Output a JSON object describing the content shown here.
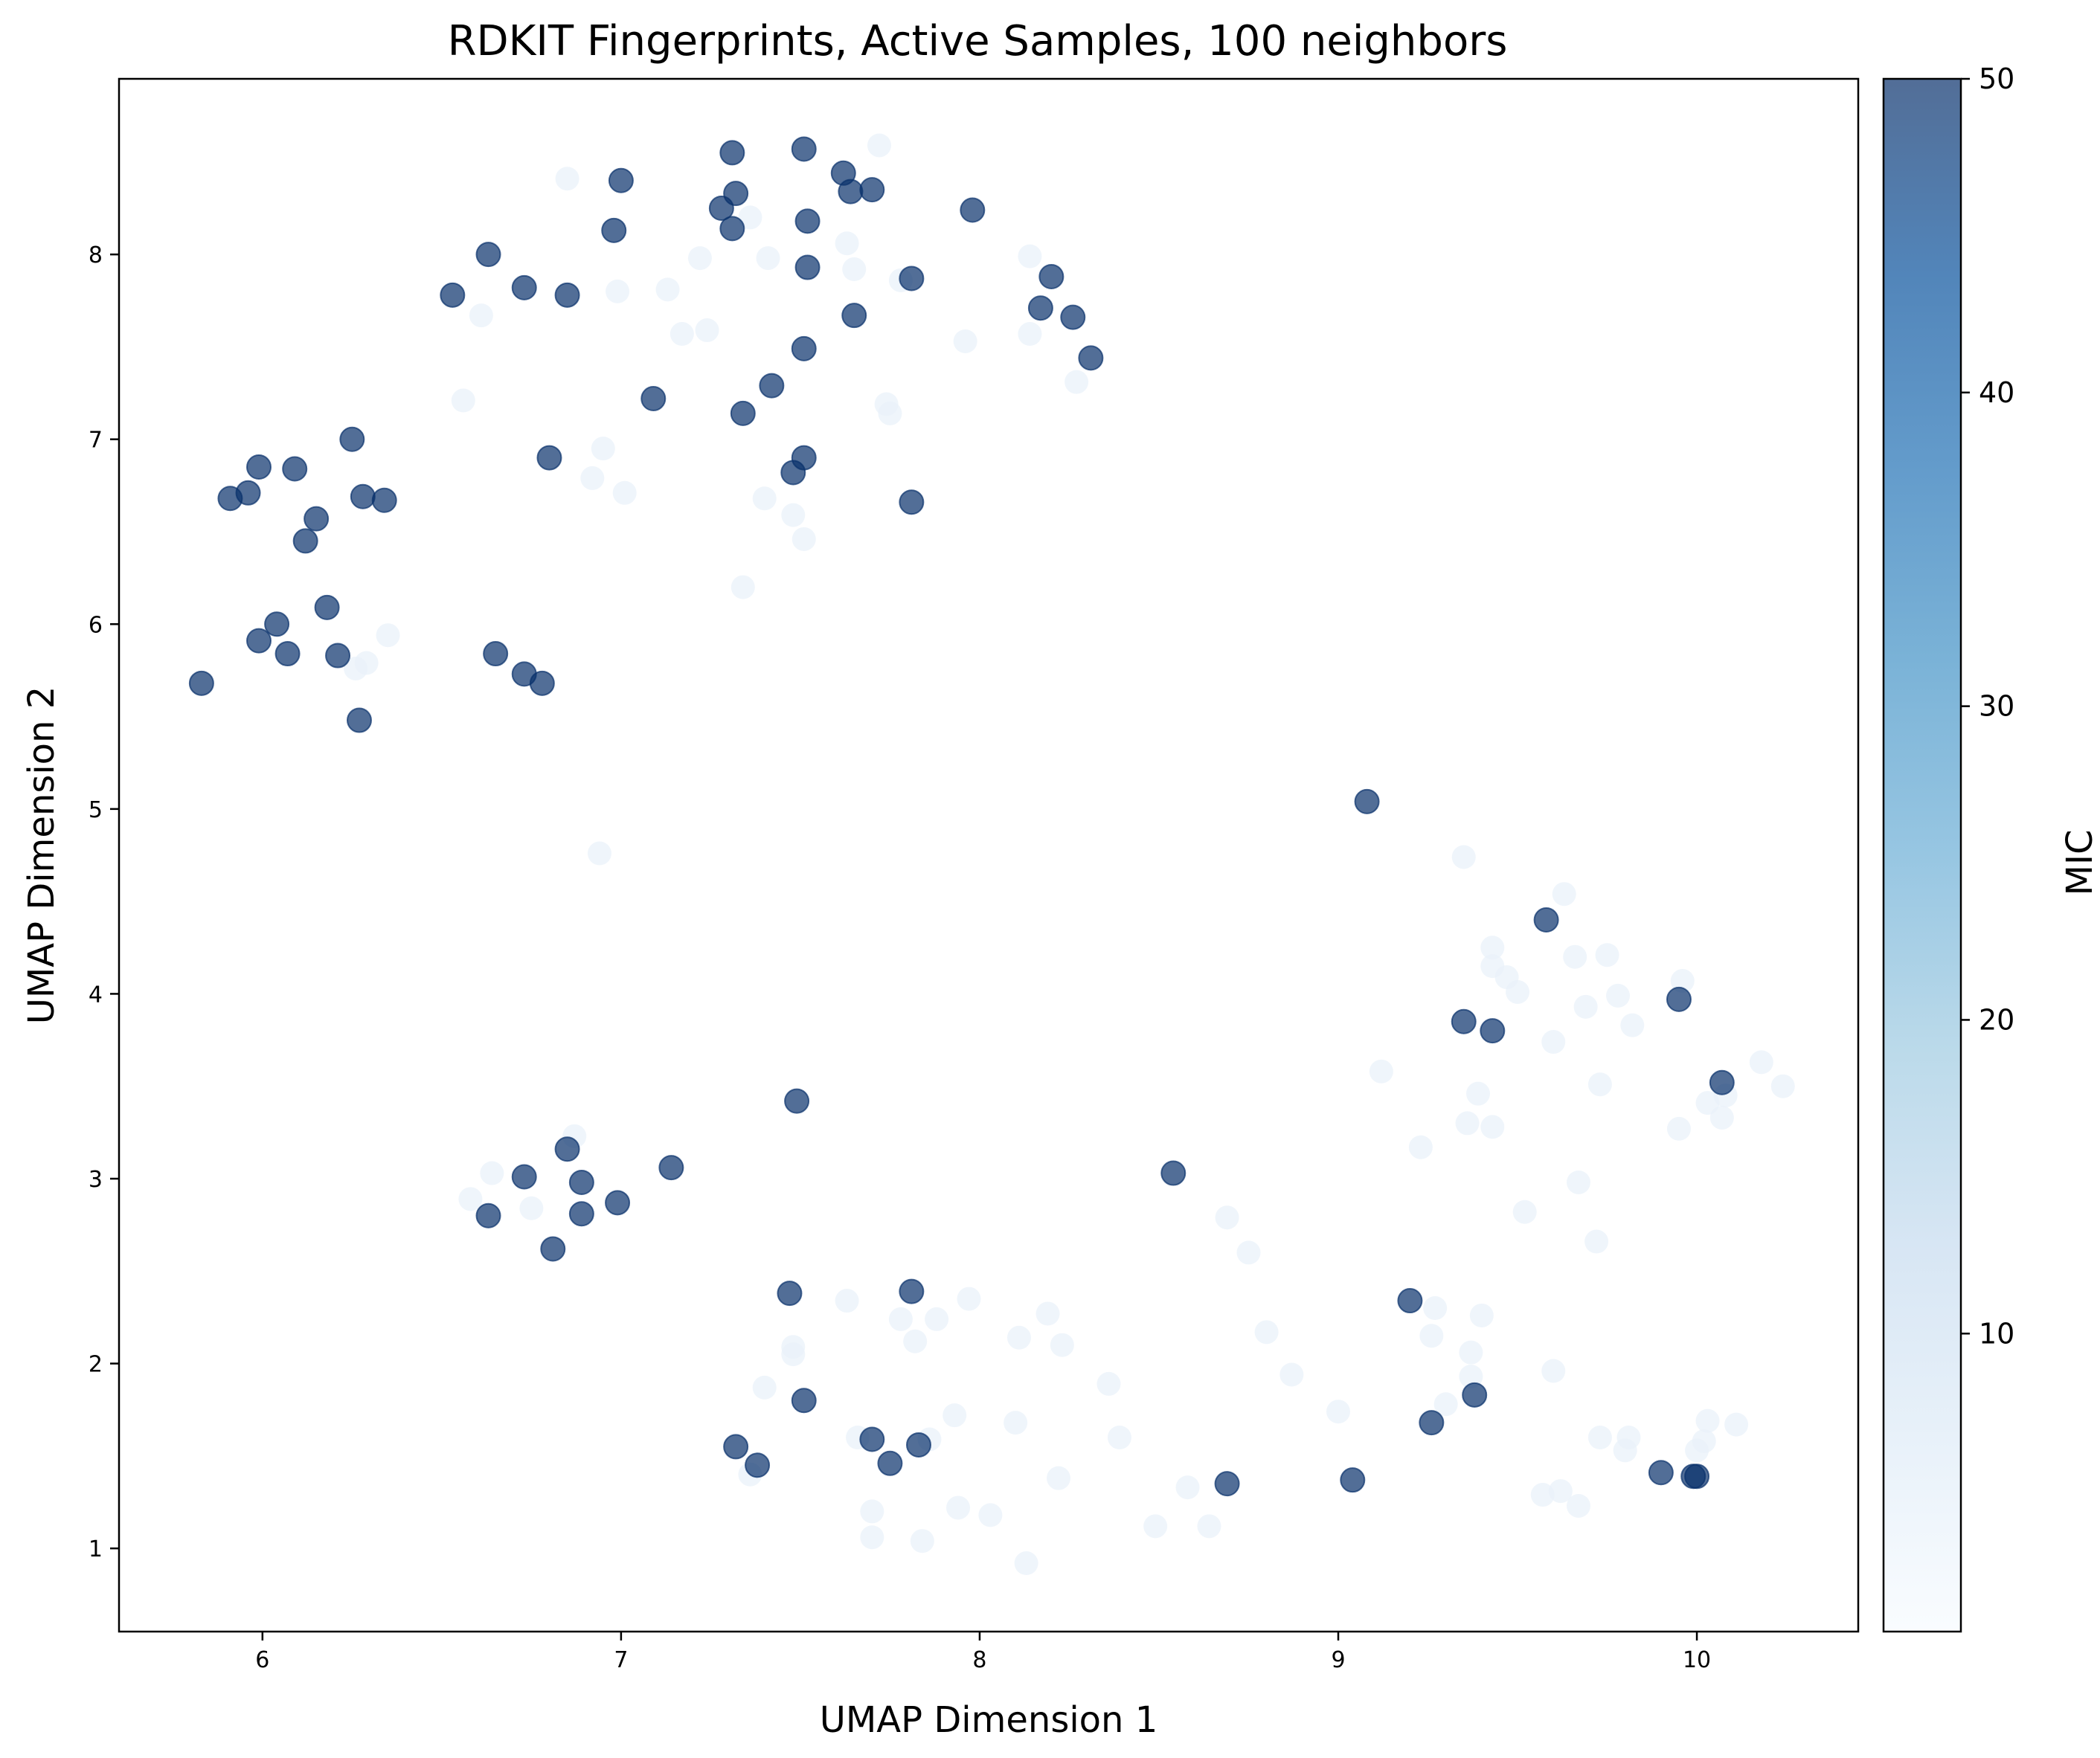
{
  "chart_data": {
    "type": "scatter",
    "title": "RDKIT Fingerprints, Active Samples, 100 neighbors",
    "xlabel": "UMAP Dimension 1",
    "ylabel": "UMAP Dimension 2",
    "xlim": [
      5.6,
      10.45
    ],
    "ylim": [
      0.55,
      8.95
    ],
    "xticks": [
      6,
      7,
      8,
      9,
      10
    ],
    "yticks": [
      1,
      2,
      3,
      4,
      5,
      6,
      7,
      8
    ],
    "grid": false,
    "colormap": "Blues",
    "colormap_stops": [
      "#f7fbff",
      "#deebf7",
      "#c6dbef",
      "#9ecae1",
      "#6baed6",
      "#4292c6",
      "#2171b5",
      "#08519c",
      "#08306b"
    ],
    "point_alpha": 0.7,
    "colorbar": {
      "label": "MIC",
      "range": [
        0.5,
        50
      ],
      "ticks": [
        10,
        20,
        30,
        40,
        50
      ]
    },
    "points_high_mic": [
      {
        "x": 5.83,
        "y": 5.68
      },
      {
        "x": 5.91,
        "y": 6.68
      },
      {
        "x": 5.96,
        "y": 6.71
      },
      {
        "x": 5.99,
        "y": 6.85
      },
      {
        "x": 5.99,
        "y": 5.91
      },
      {
        "x": 6.04,
        "y": 6.0
      },
      {
        "x": 6.07,
        "y": 5.84
      },
      {
        "x": 6.09,
        "y": 6.84
      },
      {
        "x": 6.12,
        "y": 6.45
      },
      {
        "x": 6.15,
        "y": 6.57
      },
      {
        "x": 6.18,
        "y": 6.09
      },
      {
        "x": 6.21,
        "y": 5.83
      },
      {
        "x": 6.25,
        "y": 7.0
      },
      {
        "x": 6.27,
        "y": 5.48
      },
      {
        "x": 6.28,
        "y": 6.69
      },
      {
        "x": 6.34,
        "y": 6.67
      },
      {
        "x": 6.53,
        "y": 7.78
      },
      {
        "x": 6.63,
        "y": 8.0
      },
      {
        "x": 6.65,
        "y": 5.84
      },
      {
        "x": 6.73,
        "y": 7.82
      },
      {
        "x": 6.73,
        "y": 5.73
      },
      {
        "x": 6.78,
        "y": 5.68
      },
      {
        "x": 6.8,
        "y": 6.9
      },
      {
        "x": 6.85,
        "y": 7.78
      },
      {
        "x": 6.98,
        "y": 8.13
      },
      {
        "x": 7.0,
        "y": 8.4
      },
      {
        "x": 7.09,
        "y": 7.22
      },
      {
        "x": 7.28,
        "y": 8.25
      },
      {
        "x": 7.31,
        "y": 8.55
      },
      {
        "x": 7.32,
        "y": 8.33
      },
      {
        "x": 7.31,
        "y": 8.14
      },
      {
        "x": 7.34,
        "y": 7.14
      },
      {
        "x": 7.42,
        "y": 7.29
      },
      {
        "x": 7.48,
        "y": 6.82
      },
      {
        "x": 7.51,
        "y": 6.9
      },
      {
        "x": 7.51,
        "y": 7.49
      },
      {
        "x": 7.51,
        "y": 8.57
      },
      {
        "x": 7.52,
        "y": 8.18
      },
      {
        "x": 7.52,
        "y": 7.93
      },
      {
        "x": 7.62,
        "y": 8.44
      },
      {
        "x": 7.64,
        "y": 8.34
      },
      {
        "x": 7.65,
        "y": 7.67
      },
      {
        "x": 7.7,
        "y": 8.35
      },
      {
        "x": 7.81,
        "y": 7.87
      },
      {
        "x": 7.81,
        "y": 6.66
      },
      {
        "x": 7.98,
        "y": 8.24
      },
      {
        "x": 8.17,
        "y": 7.71
      },
      {
        "x": 8.2,
        "y": 7.88
      },
      {
        "x": 8.26,
        "y": 7.66
      },
      {
        "x": 8.31,
        "y": 7.44
      },
      {
        "x": 6.63,
        "y": 2.8
      },
      {
        "x": 6.73,
        "y": 3.01
      },
      {
        "x": 6.81,
        "y": 2.62
      },
      {
        "x": 6.85,
        "y": 3.16
      },
      {
        "x": 6.89,
        "y": 2.98
      },
      {
        "x": 6.89,
        "y": 2.81
      },
      {
        "x": 6.99,
        "y": 2.87
      },
      {
        "x": 7.14,
        "y": 3.06
      },
      {
        "x": 7.32,
        "y": 1.55
      },
      {
        "x": 7.38,
        "y": 1.45
      },
      {
        "x": 7.47,
        "y": 2.38
      },
      {
        "x": 7.49,
        "y": 3.42
      },
      {
        "x": 7.51,
        "y": 1.8
      },
      {
        "x": 7.7,
        "y": 1.59
      },
      {
        "x": 7.75,
        "y": 1.46
      },
      {
        "x": 7.81,
        "y": 2.39
      },
      {
        "x": 7.83,
        "y": 1.56
      },
      {
        "x": 8.54,
        "y": 3.03
      },
      {
        "x": 8.69,
        "y": 1.35
      },
      {
        "x": 9.04,
        "y": 1.37
      },
      {
        "x": 9.08,
        "y": 5.04
      },
      {
        "x": 9.2,
        "y": 2.34
      },
      {
        "x": 9.26,
        "y": 1.68
      },
      {
        "x": 9.35,
        "y": 3.85
      },
      {
        "x": 9.38,
        "y": 1.83
      },
      {
        "x": 9.43,
        "y": 3.8
      },
      {
        "x": 9.58,
        "y": 4.4
      },
      {
        "x": 9.9,
        "y": 1.41
      },
      {
        "x": 9.95,
        "y": 3.97
      },
      {
        "x": 9.99,
        "y": 1.39
      },
      {
        "x": 10.0,
        "y": 1.39
      },
      {
        "x": 10.07,
        "y": 3.52
      }
    ],
    "points_low_mic": [
      {
        "x": 6.26,
        "y": 5.76
      },
      {
        "x": 6.29,
        "y": 5.79
      },
      {
        "x": 6.35,
        "y": 5.94
      },
      {
        "x": 6.56,
        "y": 7.21
      },
      {
        "x": 6.61,
        "y": 7.67
      },
      {
        "x": 6.85,
        "y": 8.41
      },
      {
        "x": 6.92,
        "y": 6.79
      },
      {
        "x": 6.95,
        "y": 6.95
      },
      {
        "x": 6.99,
        "y": 7.8
      },
      {
        "x": 7.01,
        "y": 6.71
      },
      {
        "x": 7.13,
        "y": 7.81
      },
      {
        "x": 7.17,
        "y": 7.57
      },
      {
        "x": 7.22,
        "y": 7.98
      },
      {
        "x": 7.24,
        "y": 7.59
      },
      {
        "x": 7.34,
        "y": 6.2
      },
      {
        "x": 7.36,
        "y": 8.2
      },
      {
        "x": 7.4,
        "y": 6.68
      },
      {
        "x": 7.41,
        "y": 7.98
      },
      {
        "x": 7.48,
        "y": 6.59
      },
      {
        "x": 7.51,
        "y": 6.46
      },
      {
        "x": 7.63,
        "y": 8.06
      },
      {
        "x": 7.65,
        "y": 7.92
      },
      {
        "x": 7.72,
        "y": 8.59
      },
      {
        "x": 7.74,
        "y": 7.19
      },
      {
        "x": 7.75,
        "y": 7.14
      },
      {
        "x": 7.78,
        "y": 7.86
      },
      {
        "x": 7.96,
        "y": 7.53
      },
      {
        "x": 8.14,
        "y": 7.99
      },
      {
        "x": 8.14,
        "y": 7.57
      },
      {
        "x": 8.27,
        "y": 7.31
      },
      {
        "x": 6.94,
        "y": 4.76
      },
      {
        "x": 6.58,
        "y": 2.89
      },
      {
        "x": 6.64,
        "y": 3.03
      },
      {
        "x": 6.75,
        "y": 2.84
      },
      {
        "x": 6.87,
        "y": 3.23
      },
      {
        "x": 7.36,
        "y": 1.4
      },
      {
        "x": 7.4,
        "y": 1.87
      },
      {
        "x": 7.48,
        "y": 2.09
      },
      {
        "x": 7.48,
        "y": 2.05
      },
      {
        "x": 7.63,
        "y": 2.34
      },
      {
        "x": 7.66,
        "y": 1.6
      },
      {
        "x": 7.7,
        "y": 1.2
      },
      {
        "x": 7.7,
        "y": 1.06
      },
      {
        "x": 7.78,
        "y": 2.24
      },
      {
        "x": 7.82,
        "y": 2.12
      },
      {
        "x": 7.84,
        "y": 1.04
      },
      {
        "x": 7.86,
        "y": 1.59
      },
      {
        "x": 7.88,
        "y": 2.24
      },
      {
        "x": 7.93,
        "y": 1.72
      },
      {
        "x": 7.94,
        "y": 1.22
      },
      {
        "x": 7.97,
        "y": 2.35
      },
      {
        "x": 8.03,
        "y": 1.18
      },
      {
        "x": 8.1,
        "y": 1.68
      },
      {
        "x": 8.11,
        "y": 2.14
      },
      {
        "x": 8.13,
        "y": 0.92
      },
      {
        "x": 8.19,
        "y": 2.27
      },
      {
        "x": 8.22,
        "y": 1.38
      },
      {
        "x": 8.23,
        "y": 2.1
      },
      {
        "x": 8.36,
        "y": 1.89
      },
      {
        "x": 8.39,
        "y": 1.6
      },
      {
        "x": 8.49,
        "y": 1.12
      },
      {
        "x": 8.58,
        "y": 1.33
      },
      {
        "x": 8.64,
        "y": 1.12
      },
      {
        "x": 8.69,
        "y": 2.79
      },
      {
        "x": 8.75,
        "y": 2.6
      },
      {
        "x": 8.8,
        "y": 2.17
      },
      {
        "x": 8.87,
        "y": 1.94
      },
      {
        "x": 9.0,
        "y": 1.74
      },
      {
        "x": 9.12,
        "y": 3.58
      },
      {
        "x": 9.23,
        "y": 3.17
      },
      {
        "x": 9.26,
        "y": 2.15
      },
      {
        "x": 9.27,
        "y": 2.3
      },
      {
        "x": 9.3,
        "y": 1.78
      },
      {
        "x": 9.35,
        "y": 4.74
      },
      {
        "x": 9.36,
        "y": 3.3
      },
      {
        "x": 9.37,
        "y": 2.06
      },
      {
        "x": 9.37,
        "y": 1.93
      },
      {
        "x": 9.39,
        "y": 3.46
      },
      {
        "x": 9.4,
        "y": 2.26
      },
      {
        "x": 9.43,
        "y": 4.25
      },
      {
        "x": 9.43,
        "y": 4.15
      },
      {
        "x": 9.43,
        "y": 3.28
      },
      {
        "x": 9.47,
        "y": 4.09
      },
      {
        "x": 9.5,
        "y": 4.01
      },
      {
        "x": 9.52,
        "y": 2.82
      },
      {
        "x": 9.57,
        "y": 1.29
      },
      {
        "x": 9.6,
        "y": 3.74
      },
      {
        "x": 9.6,
        "y": 1.96
      },
      {
        "x": 9.62,
        "y": 1.31
      },
      {
        "x": 9.63,
        "y": 4.54
      },
      {
        "x": 9.66,
        "y": 4.2
      },
      {
        "x": 9.67,
        "y": 2.98
      },
      {
        "x": 9.67,
        "y": 1.23
      },
      {
        "x": 9.69,
        "y": 3.93
      },
      {
        "x": 9.72,
        "y": 2.66
      },
      {
        "x": 9.73,
        "y": 3.51
      },
      {
        "x": 9.73,
        "y": 1.6
      },
      {
        "x": 9.75,
        "y": 4.21
      },
      {
        "x": 9.78,
        "y": 3.99
      },
      {
        "x": 9.8,
        "y": 1.53
      },
      {
        "x": 9.81,
        "y": 1.6
      },
      {
        "x": 9.82,
        "y": 3.83
      },
      {
        "x": 9.95,
        "y": 3.27
      },
      {
        "x": 9.96,
        "y": 4.07
      },
      {
        "x": 10.0,
        "y": 1.53
      },
      {
        "x": 10.02,
        "y": 1.58
      },
      {
        "x": 10.03,
        "y": 1.69
      },
      {
        "x": 10.03,
        "y": 3.41
      },
      {
        "x": 10.07,
        "y": 3.33
      },
      {
        "x": 10.08,
        "y": 3.45
      },
      {
        "x": 10.11,
        "y": 1.67
      },
      {
        "x": 10.18,
        "y": 3.63
      },
      {
        "x": 10.24,
        "y": 3.5
      }
    ]
  }
}
